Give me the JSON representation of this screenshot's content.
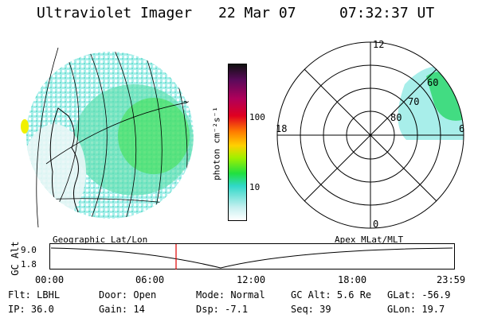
{
  "header": {
    "instrument": "Ultraviolet Imager",
    "date": "22 Mar 07",
    "time": "07:32:37 UT"
  },
  "geo_panel": {
    "label": "Geographic Lat/Lon",
    "corner_mark": "~"
  },
  "colorbar": {
    "unit_label": "photon cm⁻²s⁻¹",
    "ticks": [
      "100",
      "10"
    ],
    "colors": [
      "#101010",
      "#5a0a5a",
      "#b0005a",
      "#e00020",
      "#ff7a00",
      "#ffd000",
      "#a0f000",
      "#20e040",
      "#30d8c8",
      "#c8f0f0",
      "#ffffff"
    ]
  },
  "polar_panel": {
    "label": "Apex MLat/MLT",
    "mlt_labels": {
      "top": "12",
      "left": "18",
      "right": "6",
      "bottom": "0"
    },
    "lat_labels": [
      "60",
      "70",
      "80"
    ]
  },
  "timeline": {
    "y_title": "GC Alt",
    "y_ticks": [
      "9.0",
      "1.8"
    ],
    "x_ticks": [
      "00:00",
      "06:00",
      "12:00",
      "18:00",
      "23:59"
    ],
    "current_marker_color": "#e00000"
  },
  "status": {
    "flt_label": "Flt:",
    "flt_value": "LBHL",
    "door_label": "Door:",
    "door_value": "Open",
    "mode_label": "Mode:",
    "mode_value": "Normal",
    "gcalt_label": "GC Alt:",
    "gcalt_value": "5.6 Re",
    "glat_label": "GLat:",
    "glat_value": "-56.9",
    "ip_label": "IP:",
    "ip_value": "36.0",
    "gain_label": "Gain:",
    "gain_value": "14",
    "dsp_label": "Dsp:",
    "dsp_value": "-7.1",
    "seq_label": "Seq:",
    "seq_value": "39",
    "glon_label": "GLon:",
    "glon_value": "19.7"
  }
}
